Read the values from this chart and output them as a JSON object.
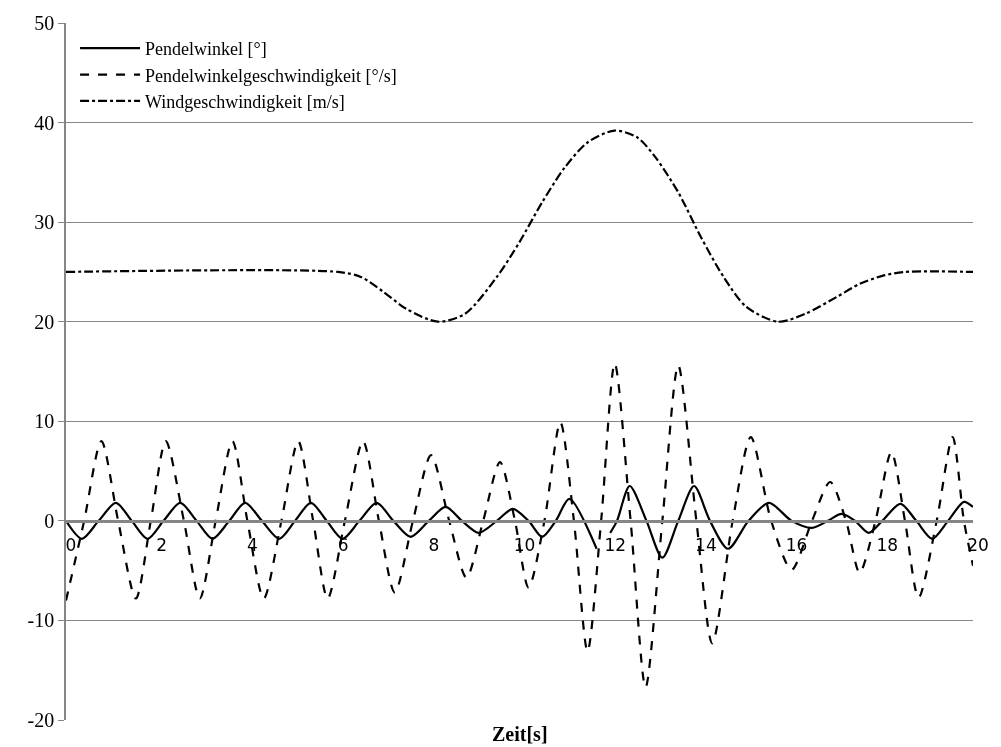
{
  "chart_data": {
    "type": "line",
    "xlabel": "Zeit[s]",
    "xlim": [
      0,
      20
    ],
    "xticks": [
      0,
      2,
      4,
      6,
      8,
      10,
      12,
      14,
      16,
      18,
      20
    ],
    "ylim": [
      -20,
      50
    ],
    "yticks": [
      -20,
      -10,
      0,
      10,
      20,
      30,
      40,
      50
    ],
    "grid": "y",
    "legend": "top left",
    "marker": "none",
    "series": [
      {
        "name": "Pendelwinkel [°]",
        "color": "#000000",
        "line_style": "solid",
        "x": [
          0,
          0.35,
          0.72,
          1.1,
          1.45,
          1.8,
          2.15,
          2.52,
          2.88,
          3.23,
          3.6,
          3.95,
          4.32,
          4.7,
          5.05,
          5.4,
          5.75,
          6.1,
          6.47,
          6.85,
          7.22,
          7.6,
          8.0,
          8.37,
          8.73,
          9.1,
          9.5,
          9.85,
          10.2,
          10.5,
          10.8,
          11.1,
          11.7,
          11.85,
          12.0,
          12.15,
          12.43,
          12.8,
          13.15,
          13.5,
          13.85,
          14.2,
          14.6,
          15.05,
          15.5,
          16.0,
          16.45,
          16.8,
          17.1,
          17.4,
          17.7,
          18.0,
          18.4,
          18.75,
          19.1,
          19.45,
          19.8,
          20
        ],
        "values": [
          0,
          -1.8,
          0,
          1.8,
          0,
          -1.8,
          0,
          1.8,
          0,
          -1.8,
          0,
          1.8,
          0,
          -1.8,
          0,
          1.8,
          0,
          -1.8,
          0,
          1.8,
          0,
          -1.6,
          0,
          1.4,
          0,
          -1.2,
          0,
          1.2,
          0,
          -1.6,
          0,
          2.2,
          -2.8,
          null,
          -1.2,
          0,
          3.5,
          0,
          -3.7,
          0,
          3.5,
          0,
          -2.8,
          0,
          1.8,
          0,
          -0.7,
          0,
          0.7,
          0,
          -1.2,
          0,
          1.7,
          0,
          -1.8,
          0,
          1.9,
          1.4
        ]
      },
      {
        "name": "Pendelwinkelgeschwindigkeit [°/s]",
        "color": "#000000",
        "line_style": "dashed",
        "x": [
          0,
          0.4,
          0.78,
          1.15,
          1.54,
          1.87,
          2.2,
          2.6,
          2.95,
          3.3,
          3.67,
          4.0,
          4.36,
          4.75,
          5.12,
          5.45,
          5.77,
          6.15,
          6.55,
          6.9,
          7.25,
          7.65,
          8.05,
          8.45,
          8.83,
          9.2,
          9.57,
          9.9,
          10.2,
          10.55,
          10.9,
          11.2,
          11.5,
          11.8,
          12.1,
          12.45,
          12.78,
          13.15,
          13.5,
          13.9,
          14.25,
          14.7,
          15.1,
          15.55,
          16.0,
          16.45,
          16.85,
          17.2,
          17.5,
          17.85,
          18.2,
          18.5,
          18.8,
          19.2,
          19.55,
          19.8,
          20
        ],
        "values": [
          -8,
          0,
          8,
          0,
          -7.8,
          0,
          8,
          0,
          -7.8,
          0,
          8,
          0,
          -7.8,
          0,
          8,
          0,
          -7.8,
          0,
          8,
          0,
          -7.2,
          0,
          6.6,
          0,
          -5.7,
          0,
          5.9,
          0,
          -6.7,
          0,
          9.9,
          0,
          -13.1,
          0,
          15.8,
          0,
          -16.7,
          0,
          15.6,
          0,
          -12.3,
          0,
          8.4,
          0,
          -4.9,
          0,
          3.9,
          0,
          -5.2,
          0,
          6.9,
          0,
          -7.7,
          0,
          8.4,
          0,
          -4.5
        ]
      },
      {
        "name": "Windgeschwindigkeit [m/s]",
        "color": "#000000",
        "line_style": "dashdot",
        "x": [
          0,
          6,
          6.5,
          7,
          7.5,
          8.2,
          8.8,
          9.5,
          10,
          10.5,
          11,
          11.5,
          12.1,
          12.6,
          13,
          13.5,
          14,
          14.5,
          15,
          15.7,
          16.3,
          17,
          17.5,
          18,
          18.5,
          20
        ],
        "values": [
          25,
          25,
          24.5,
          23,
          21.3,
          20,
          20.8,
          24.5,
          28,
          32,
          35.5,
          38,
          39.2,
          38.5,
          36.5,
          33,
          28.5,
          24.5,
          21.5,
          20,
          20.8,
          22.5,
          23.8,
          24.6,
          25,
          25
        ]
      }
    ]
  }
}
